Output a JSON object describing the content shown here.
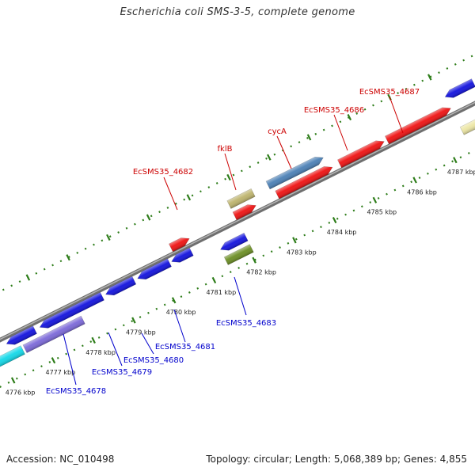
{
  "title": "Escherichia coli SMS-3-5, complete genome",
  "footer": {
    "accession": "Accession: NC_010498",
    "summary": "Topology: circular; Length: 5,068,389 bp; Genes: 4,855"
  },
  "colors": {
    "backbone": "#8a8a8a",
    "tick_green": "#2e7d1a",
    "label_red": "#cc0000",
    "label_blue": "#0000cc",
    "gene_red": "#ee1111",
    "gene_blue": "#1111dd",
    "gene_khaki": "#bdb36c",
    "gene_steelblue": "#4a7fb5",
    "gene_olive": "#6b8e23",
    "gene_slate": "#7b68d8",
    "gene_cyan": "#12d8e8",
    "gene_beige": "#ece6a4"
  },
  "ticks": [
    {
      "label": "4776 kbp"
    },
    {
      "label": "4777 kbp"
    },
    {
      "label": "4778 kbp"
    },
    {
      "label": "4779 kbp"
    },
    {
      "label": "4780 kbp"
    },
    {
      "label": "4781 kbp"
    },
    {
      "label": "4782 kbp"
    },
    {
      "label": "4783 kbp"
    },
    {
      "label": "4784 kbp"
    },
    {
      "label": "4785 kbp"
    },
    {
      "label": "4786 kbp"
    },
    {
      "label": "4787 kbp"
    }
  ],
  "gene_labels": [
    {
      "text": "EcSMS35_4682",
      "strand": "forward"
    },
    {
      "text": "fklB",
      "strand": "forward"
    },
    {
      "text": "cycA",
      "strand": "forward"
    },
    {
      "text": "EcSMS35_4686",
      "strand": "forward"
    },
    {
      "text": "EcSMS35_4687",
      "strand": "forward"
    },
    {
      "text": "EcSMS35_4678",
      "strand": "reverse"
    },
    {
      "text": "EcSMS35_4679",
      "strand": "reverse"
    },
    {
      "text": "EcSMS35_4680",
      "strand": "reverse"
    },
    {
      "text": "EcSMS35_4681",
      "strand": "reverse"
    },
    {
      "text": "EcSMS35_4683",
      "strand": "reverse"
    }
  ]
}
